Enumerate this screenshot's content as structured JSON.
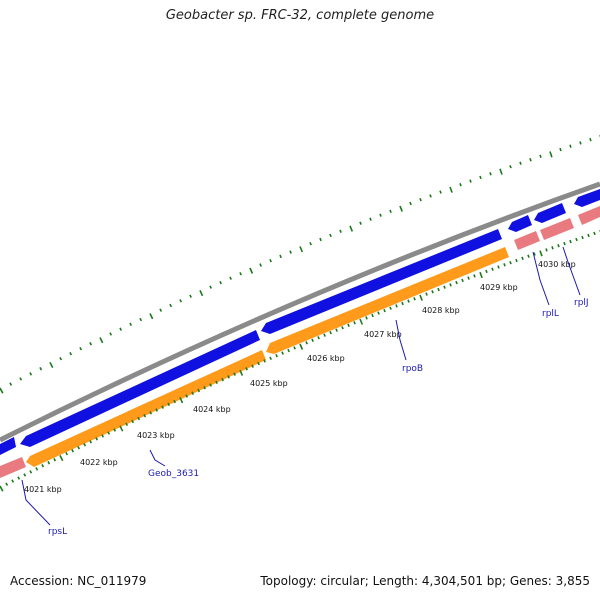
{
  "title": "Geobacter sp. FRC-32, complete genome",
  "footer": {
    "accession": "Accession: NC_011979",
    "summary": "Topology: circular; Length: 4,304,501 bp; Genes: 3,855"
  },
  "colors": {
    "backbone": "#8a8a8a",
    "forward_gene": "#1010e0",
    "reverse_gene": "#ff9a1a",
    "rna": "#e87a80",
    "tick": "#1a7a1a",
    "label_line": "#1a1ab0"
  },
  "ticks": {
    "labels": [
      "4021 kbp",
      "4022 kbp",
      "4023 kbp",
      "4024 kbp",
      "4025 kbp",
      "4026 kbp",
      "4027 kbp",
      "4028 kbp",
      "4029 kbp",
      "4030 kbp"
    ]
  },
  "genes": [
    {
      "name": "rpsL"
    },
    {
      "name": "Geob_3631"
    },
    {
      "name": "rpoB"
    },
    {
      "name": "rplL"
    },
    {
      "name": "rplJ"
    }
  ]
}
